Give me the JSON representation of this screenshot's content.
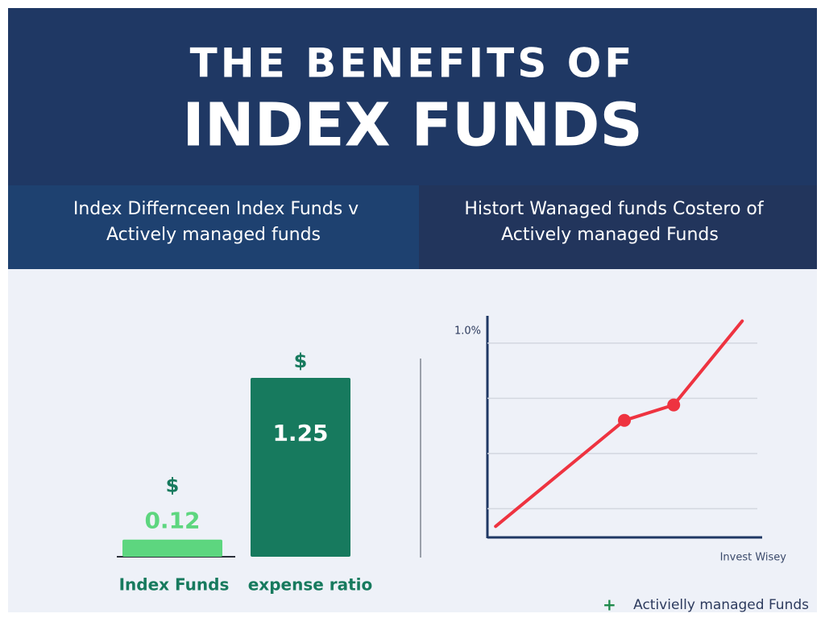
{
  "header": {
    "title_line1": "THE BENEFITS OF",
    "title_line2": "INDEX FUNDS"
  },
  "chart_data": [
    {
      "type": "bar",
      "title": [
        "Index Differnceen Index Funds v",
        "Actively managed funds"
      ],
      "categories": [
        "Index Funds",
        "expense ratio"
      ],
      "values": [
        0.12,
        1.25
      ],
      "annotations": [
        "$",
        "$"
      ],
      "colors": [
        "#5dd67f",
        "#177a5e"
      ]
    },
    {
      "type": "line",
      "title": [
        "Histort Wanaged funds Costero of",
        "Actively managed Funds"
      ],
      "x": [
        0.3,
        5.0,
        6.8,
        9.3
      ],
      "xlim": [
        0,
        10
      ],
      "ylim": [
        0.12,
        1.12
      ],
      "yticks": [
        {
          "value": 1.0,
          "label": "1.0%"
        }
      ],
      "ygrid": [
        0.25,
        0.5,
        0.75,
        1.0
      ],
      "x_label": "Invest Wisey",
      "legend": "bottom-right",
      "series": [
        {
          "name": "Activielly managed Funds",
          "color": "#ee3340",
          "values": [
            0.17,
            0.65,
            0.72,
            1.1
          ]
        }
      ]
    }
  ]
}
